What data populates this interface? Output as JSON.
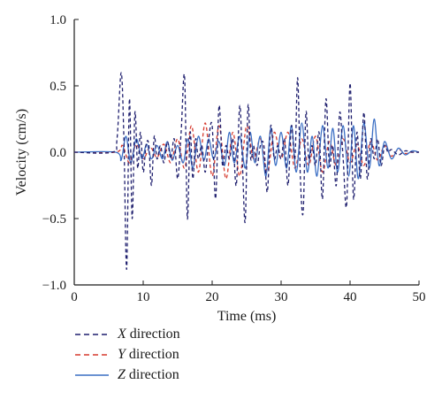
{
  "chart_data": {
    "type": "line",
    "title": "",
    "xlabel": "Time (ms)",
    "ylabel": "Velocity (cm/s)",
    "xlim": [
      0,
      50
    ],
    "ylim": [
      -1.0,
      1.0
    ],
    "xticks": [
      0,
      10,
      20,
      30,
      40,
      50
    ],
    "xtick_labels": [
      "0",
      "10",
      "20",
      "30",
      "40",
      "50"
    ],
    "yticks": [
      -1.0,
      -0.5,
      0.0,
      0.5,
      1.0
    ],
    "ytick_labels": [
      "−1.0",
      "−0.5",
      "0.0",
      "0.5",
      "1.0"
    ],
    "grid": false,
    "legend_position": "bottom-left",
    "series": [
      {
        "name": "X direction",
        "axis_letter": "X",
        "name_suffix": " direction",
        "color": "#1f1f6e",
        "dash": "dashed",
        "x": [
          0,
          5.5,
          6.2,
          6.8,
          7.2,
          7.6,
          8.0,
          8.4,
          8.8,
          9.2,
          9.6,
          10.0,
          10.4,
          10.8,
          11.2,
          11.6,
          12.0,
          12.5,
          13.0,
          13.5,
          14.0,
          14.5,
          15.0,
          15.5,
          16.0,
          16.4,
          16.8,
          17.2,
          17.6,
          18.0,
          18.5,
          19.0,
          19.5,
          20.0,
          20.5,
          21.0,
          21.5,
          22.0,
          22.5,
          23.0,
          23.5,
          24.0,
          24.4,
          24.8,
          25.2,
          25.6,
          26.0,
          26.5,
          27.0,
          27.5,
          28.0,
          28.5,
          29.0,
          29.5,
          30.0,
          30.5,
          31.0,
          31.5,
          32.0,
          32.4,
          32.8,
          33.2,
          33.6,
          34.0,
          34.5,
          35.0,
          35.5,
          36.0,
          36.5,
          37.0,
          37.5,
          38.0,
          38.5,
          39.0,
          39.5,
          40.0,
          40.5,
          41.0,
          41.5,
          42.0,
          42.5,
          43.0,
          43.5,
          44.0,
          44.5,
          45.0,
          45.5,
          46.0,
          47.0,
          48.0,
          49.0,
          50.0
        ],
        "y": [
          0,
          0.0,
          0.1,
          0.6,
          0.1,
          -0.88,
          0.4,
          -0.5,
          0.3,
          -0.12,
          0.15,
          -0.15,
          0.05,
          0.06,
          -0.25,
          0.12,
          -0.05,
          0.05,
          -0.08,
          0.08,
          -0.05,
          0.1,
          -0.2,
          0.15,
          0.57,
          -0.5,
          0.15,
          -0.2,
          0.1,
          -0.05,
          0.05,
          -0.15,
          0.1,
          0.2,
          -0.35,
          0.35,
          -0.1,
          0.05,
          -0.05,
          0.1,
          -0.25,
          0.35,
          -0.1,
          -0.52,
          0.35,
          -0.05,
          0.05,
          -0.1,
          0.05,
          0.05,
          -0.3,
          0.2,
          -0.05,
          0.05,
          -0.05,
          0.1,
          -0.25,
          0.2,
          -0.05,
          0.56,
          -0.2,
          -0.45,
          0.3,
          -0.05,
          0.05,
          -0.1,
          0.15,
          -0.35,
          0.4,
          -0.1,
          0.05,
          -0.25,
          0.3,
          -0.05,
          -0.4,
          0.52,
          -0.35,
          0.15,
          -0.2,
          0.3,
          -0.2,
          0.1,
          -0.05,
          0.1,
          -0.1,
          0.05,
          0.0,
          0.02,
          -0.02,
          0.01,
          0.0,
          0.0
        ]
      },
      {
        "name": "Y direction",
        "axis_letter": "Y",
        "name_suffix": " direction",
        "color": "#d63a2e",
        "dash": "dashed",
        "x": [
          0,
          6.0,
          7.0,
          8.0,
          9.0,
          10.0,
          11.0,
          12.0,
          13.0,
          14.0,
          15.0,
          16.0,
          17.0,
          18.0,
          19.0,
          20.0,
          21.0,
          22.0,
          23.0,
          24.0,
          25.0,
          26.0,
          27.0,
          28.0,
          29.0,
          30.0,
          31.0,
          32.0,
          33.0,
          34.0,
          35.0,
          36.0,
          37.0,
          38.0,
          39.0,
          40.0,
          41.0,
          42.0,
          43.0,
          44.0,
          45.0,
          46.0,
          47.0,
          48.0,
          49.0,
          50.0
        ],
        "y": [
          0,
          0.0,
          0.05,
          -0.08,
          0.06,
          -0.05,
          0.04,
          -0.04,
          0.06,
          -0.08,
          0.1,
          -0.12,
          0.2,
          -0.15,
          0.22,
          -0.18,
          0.2,
          -0.2,
          0.15,
          -0.18,
          0.2,
          -0.05,
          0.1,
          -0.15,
          0.15,
          -0.05,
          0.15,
          -0.12,
          0.1,
          -0.1,
          0.12,
          -0.15,
          0.08,
          -0.1,
          0.1,
          -0.08,
          0.06,
          -0.1,
          0.08,
          -0.06,
          0.05,
          -0.03,
          0.02,
          -0.01,
          0.0,
          0.0
        ]
      },
      {
        "name": "Z direction",
        "axis_letter": "Z",
        "name_suffix": " direction",
        "color": "#3a6ec4",
        "dash": "solid",
        "x": [
          0,
          6.0,
          6.8,
          7.5,
          8.2,
          9.0,
          9.8,
          10.5,
          11.2,
          12.0,
          12.8,
          13.5,
          14.2,
          15.0,
          15.8,
          16.5,
          17.2,
          18.0,
          18.8,
          19.5,
          20.2,
          21.0,
          21.8,
          22.5,
          23.2,
          24.0,
          24.8,
          25.5,
          26.2,
          27.0,
          27.8,
          28.5,
          29.2,
          30.0,
          30.8,
          31.5,
          32.2,
          33.0,
          33.8,
          34.5,
          35.2,
          36.0,
          36.8,
          37.5,
          38.2,
          39.0,
          39.8,
          40.5,
          41.2,
          42.0,
          42.8,
          43.5,
          44.2,
          45.0,
          46.0,
          47.0,
          48.0,
          49.0,
          50.0
        ],
        "y": [
          0,
          0.0,
          -0.06,
          0.12,
          -0.08,
          0.1,
          -0.05,
          0.06,
          -0.05,
          0.05,
          -0.05,
          0.08,
          -0.06,
          0.05,
          -0.08,
          0.1,
          -0.12,
          0.12,
          -0.06,
          0.1,
          -0.05,
          0.08,
          -0.1,
          0.15,
          -0.08,
          0.12,
          -0.12,
          0.15,
          -0.08,
          0.12,
          -0.18,
          0.18,
          -0.1,
          0.15,
          -0.12,
          0.2,
          -0.15,
          0.22,
          -0.15,
          0.12,
          -0.18,
          0.2,
          -0.12,
          0.18,
          -0.15,
          0.2,
          -0.18,
          0.2,
          -0.2,
          0.22,
          -0.12,
          0.25,
          -0.1,
          0.08,
          -0.05,
          0.03,
          -0.02,
          0.01,
          0.0
        ]
      }
    ]
  }
}
